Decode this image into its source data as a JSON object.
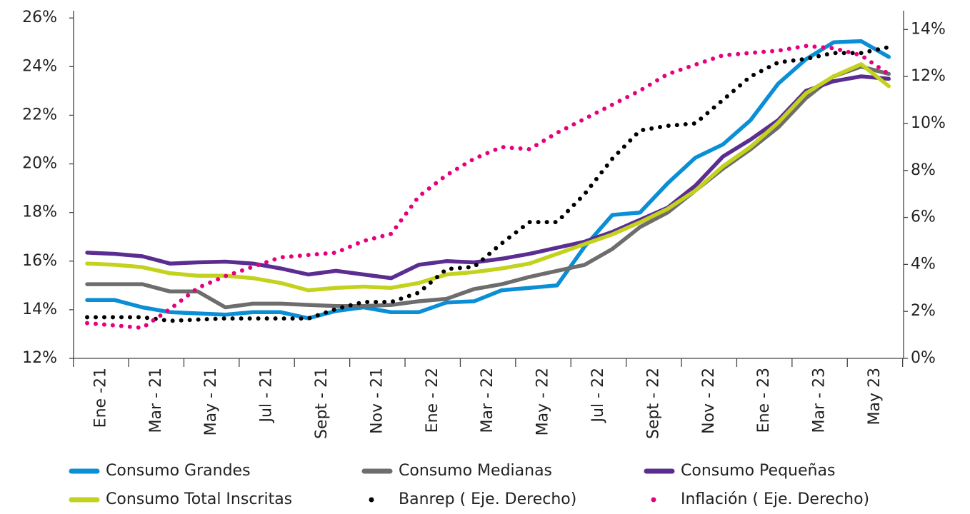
{
  "chart_data": {
    "type": "line",
    "categories": [
      "Ene -21",
      null,
      "Mar - 21",
      null,
      "May - 21",
      null,
      "Jul - 21",
      null,
      "Sept - 21",
      null,
      "Nov - 21",
      null,
      "Ene - 22",
      null,
      "Mar - 22",
      null,
      "May - 22",
      null,
      "Jul - 22",
      null,
      "Sept - 22",
      null,
      "Nov - 22",
      null,
      "Ene - 23",
      null,
      "Mar - 23",
      null,
      "May 23",
      null
    ],
    "ylim": [
      12,
      26.3
    ],
    "yticks": [
      {
        "value": 12,
        "label": "12%"
      },
      {
        "value": 14,
        "label": "14%"
      },
      {
        "value": 16,
        "label": "16%"
      },
      {
        "value": 18,
        "label": "18%"
      },
      {
        "value": 20,
        "label": "20%"
      },
      {
        "value": 22,
        "label": "22%"
      },
      {
        "value": 24,
        "label": "24%"
      },
      {
        "value": 26,
        "label": "26%"
      }
    ],
    "y2lim": [
      0,
      14.8
    ],
    "y2ticks": [
      {
        "value": 0,
        "label": "0%"
      },
      {
        "value": 2,
        "label": "2%"
      },
      {
        "value": 4,
        "label": "4%"
      },
      {
        "value": 6,
        "label": "6%"
      },
      {
        "value": 8,
        "label": "8%"
      },
      {
        "value": 10,
        "label": "10%"
      },
      {
        "value": 12,
        "label": "12%"
      },
      {
        "value": 14,
        "label": "14%"
      }
    ],
    "series": [
      {
        "name": "Consumo Grandes",
        "color": "#0a8fd6",
        "style": "solid",
        "values": [
          14.4,
          14.4,
          14.1,
          13.9,
          13.85,
          13.8,
          13.9,
          13.9,
          13.65,
          13.95,
          14.1,
          13.9,
          13.9,
          14.3,
          14.35,
          14.8,
          14.9,
          15.0,
          16.6,
          17.9,
          18.0,
          19.2,
          20.25,
          20.8,
          21.8,
          23.3,
          24.3,
          25.0,
          25.05,
          24.4
        ]
      },
      {
        "name": "Consumo Medianas",
        "color": "#6d6d6d",
        "style": "solid",
        "values": [
          15.05,
          15.05,
          15.05,
          14.75,
          14.75,
          14.1,
          14.25,
          14.25,
          14.2,
          14.15,
          14.15,
          14.2,
          14.35,
          14.45,
          14.85,
          15.05,
          15.35,
          15.6,
          15.85,
          16.5,
          17.4,
          18.0,
          18.9,
          19.8,
          20.6,
          21.5,
          22.7,
          23.6,
          24.0,
          23.7
        ]
      },
      {
        "name": "Consumo Pequeñas",
        "color": "#5b2d90",
        "style": "solid",
        "values": [
          16.35,
          16.3,
          16.2,
          15.9,
          15.95,
          15.98,
          15.9,
          15.7,
          15.45,
          15.6,
          15.45,
          15.3,
          15.85,
          16.0,
          15.95,
          16.1,
          16.3,
          16.55,
          16.8,
          17.2,
          17.7,
          18.2,
          19.1,
          20.3,
          21.0,
          21.8,
          23.0,
          23.4,
          23.6,
          23.5
        ]
      },
      {
        "name": "Consumo Total Inscritas",
        "color": "#c3d21c",
        "style": "solid",
        "values": [
          15.9,
          15.85,
          15.75,
          15.5,
          15.4,
          15.4,
          15.3,
          15.1,
          14.8,
          14.9,
          14.95,
          14.9,
          15.1,
          15.45,
          15.55,
          15.7,
          15.9,
          16.3,
          16.7,
          17.1,
          17.6,
          18.15,
          18.9,
          19.9,
          20.7,
          21.7,
          22.9,
          23.6,
          24.1,
          23.2
        ]
      },
      {
        "name": "Banrep ( Eje. Derecho)",
        "color": "#000000",
        "style": "dotted",
        "axis": "y2",
        "values": [
          1.75,
          1.75,
          1.75,
          1.6,
          1.65,
          1.7,
          1.7,
          1.7,
          1.7,
          2.1,
          2.4,
          2.4,
          2.8,
          3.8,
          3.9,
          4.9,
          5.8,
          5.8,
          7.0,
          8.5,
          9.7,
          9.9,
          10.0,
          11.0,
          12.0,
          12.6,
          12.75,
          13.0,
          13.0,
          13.25
        ]
      },
      {
        "name": "Inflación ( Eje. Derecho)",
        "color": "#e6007e",
        "style": "dotted",
        "axis": "y2",
        "values": [
          1.5,
          1.4,
          1.3,
          2.1,
          3.0,
          3.5,
          3.9,
          4.3,
          4.4,
          4.5,
          5.0,
          5.3,
          6.9,
          7.8,
          8.5,
          9.0,
          8.9,
          9.6,
          10.2,
          10.8,
          11.4,
          12.1,
          12.5,
          12.9,
          13.0,
          13.1,
          13.3,
          13.2,
          12.9,
          12.1
        ]
      }
    ]
  }
}
